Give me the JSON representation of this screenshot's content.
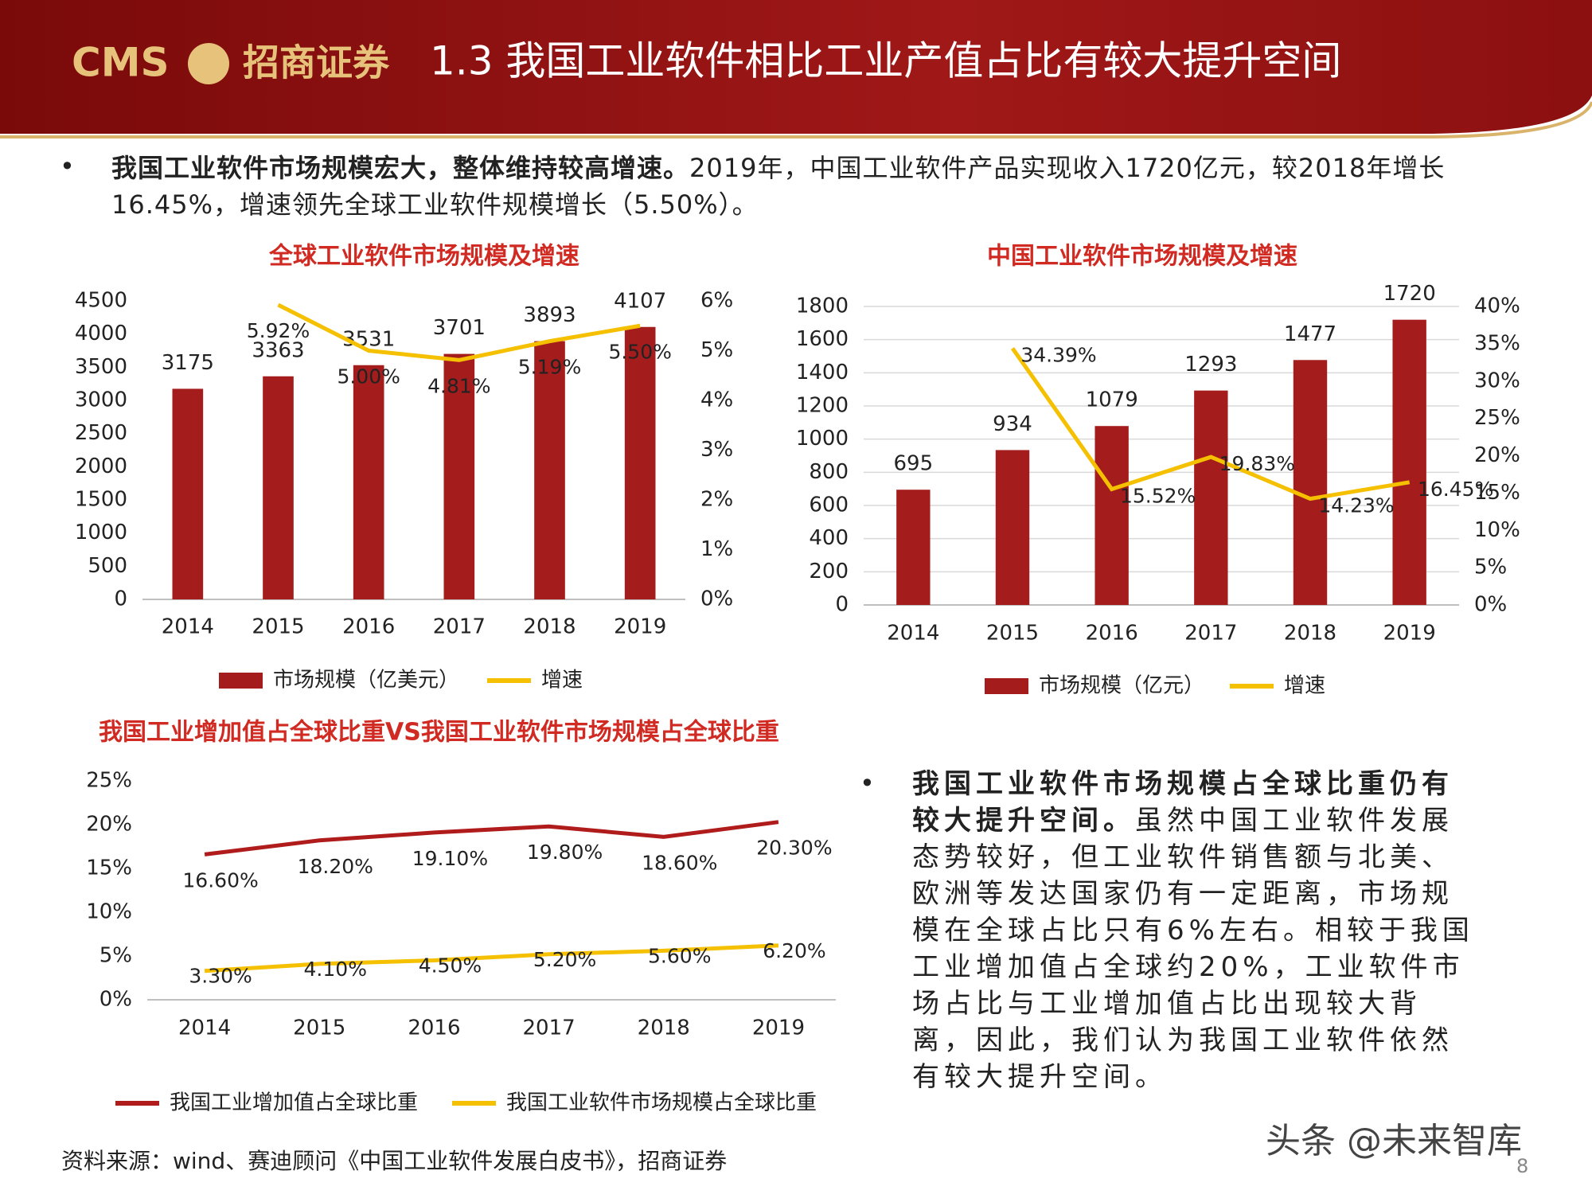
{
  "header": {
    "logo_text": "CMS",
    "brand": "招商证券",
    "title": "1.3 我国工业软件相比工业产值占比有较大提升空间"
  },
  "bullets": [
    {
      "bold": "我国工业软件市场规模宏大，整体维持较高增速。",
      "text": "2019年，中国工业软件产品实现收入1720亿元，较2018年增长16.45%，增速领先全球工业软件规模增长（5.50%）。"
    },
    {
      "bold": "我国工业软件市场规模占全球比重仍有较大提升空间。",
      "text": "虽然中国工业软件发展态势较好，但工业软件销售额与北美、欧洲等发达国家仍有一定距离，市场规模在全球占比只有6%左右。相较于我国工业增加值占全球约20%，工业软件市场占比与工业增加值占比出现较大背离，因此，我们认为我国工业软件依然有较大提升空间。"
    }
  ],
  "chart_data": [
    {
      "type": "combo",
      "title": "全球工业软件市场规模及增速",
      "categories": [
        "2014",
        "2015",
        "2016",
        "2017",
        "2018",
        "2019"
      ],
      "series": [
        {
          "name": "市场规模（亿美元）",
          "type": "bar",
          "color": "#a51c1c",
          "values": [
            3175,
            3363,
            3531,
            3701,
            3893,
            4107
          ]
        },
        {
          "name": "增速",
          "type": "line",
          "axis": "y2",
          "color": "#f5c000",
          "values": [
            null,
            5.92,
            5.0,
            4.81,
            5.19,
            5.5
          ],
          "value_labels": [
            null,
            "5.92%",
            "5.00%",
            "4.81%",
            "5.19%",
            "5.50%"
          ]
        }
      ],
      "ylim": [
        0,
        4500
      ],
      "yticks": [
        0,
        500,
        1000,
        1500,
        2000,
        2500,
        3000,
        3500,
        4000,
        4500
      ],
      "y2lim": [
        0,
        6
      ],
      "y2ticks": [
        {
          "value": 0,
          "label": "0%"
        },
        {
          "value": 1,
          "label": "1%"
        },
        {
          "value": 2,
          "label": "2%"
        },
        {
          "value": 3,
          "label": "3%"
        },
        {
          "value": 4,
          "label": "4%"
        },
        {
          "value": 5,
          "label": "5%"
        },
        {
          "value": 6,
          "label": "6%"
        }
      ],
      "grid": false
    },
    {
      "type": "combo",
      "title": "中国工业软件市场规模及增速",
      "categories": [
        "2014",
        "2015",
        "2016",
        "2017",
        "2018",
        "2019"
      ],
      "series": [
        {
          "name": "市场规模（亿元）",
          "type": "bar",
          "color": "#a51c1c",
          "values": [
            695,
            934,
            1079,
            1293,
            1477,
            1720
          ]
        },
        {
          "name": "增速",
          "type": "line",
          "axis": "y2",
          "color": "#f5c000",
          "values": [
            null,
            34.39,
            15.52,
            19.83,
            14.23,
            16.45
          ],
          "value_labels": [
            null,
            "34.39%",
            "15.52%",
            "19.83%",
            "14.23%",
            "16.45%"
          ]
        }
      ],
      "ylim": [
        0,
        1800
      ],
      "yticks": [
        0,
        200,
        400,
        600,
        800,
        1000,
        1200,
        1400,
        1600,
        1800
      ],
      "y2lim": [
        0,
        40
      ],
      "y2ticks": [
        {
          "value": 0,
          "label": "0%"
        },
        {
          "value": 5,
          "label": "5%"
        },
        {
          "value": 10,
          "label": "10%"
        },
        {
          "value": 15,
          "label": "15%"
        },
        {
          "value": 20,
          "label": "20%"
        },
        {
          "value": 25,
          "label": "25%"
        },
        {
          "value": 30,
          "label": "30%"
        },
        {
          "value": 35,
          "label": "35%"
        },
        {
          "value": 40,
          "label": "40%"
        }
      ],
      "grid": true
    },
    {
      "type": "line",
      "title": "我国工业增加值占全球比重VS我国工业软件市场规模占全球比重",
      "categories": [
        "2014",
        "2015",
        "2016",
        "2017",
        "2018",
        "2019"
      ],
      "series": [
        {
          "name": "我国工业增加值占全球比重",
          "type": "line",
          "color": "#b01c1c",
          "values": [
            16.6,
            18.2,
            19.1,
            19.8,
            18.6,
            20.3
          ],
          "value_labels": [
            "16.60%",
            "18.20%",
            "19.10%",
            "19.80%",
            "18.60%",
            "20.30%"
          ]
        },
        {
          "name": "我国工业软件市场规模占全球比重",
          "type": "line",
          "color": "#f5c000",
          "values": [
            3.3,
            4.1,
            4.5,
            5.2,
            5.6,
            6.2
          ],
          "value_labels": [
            "3.30%",
            "4.10%",
            "4.50%",
            "5.20%",
            "5.60%",
            "6.20%"
          ]
        }
      ],
      "ylim": [
        0,
        25
      ],
      "yticks": [
        {
          "value": 0,
          "label": "0%"
        },
        {
          "value": 5,
          "label": "5%"
        },
        {
          "value": 10,
          "label": "10%"
        },
        {
          "value": 15,
          "label": "15%"
        },
        {
          "value": 20,
          "label": "20%"
        },
        {
          "value": 25,
          "label": "25%"
        }
      ],
      "grid": false
    }
  ],
  "source": "资料来源：wind、赛迪顾问《中国工业软件发展白皮书》，招商证券",
  "watermark": "头条 @未来智库",
  "page_number": "8"
}
